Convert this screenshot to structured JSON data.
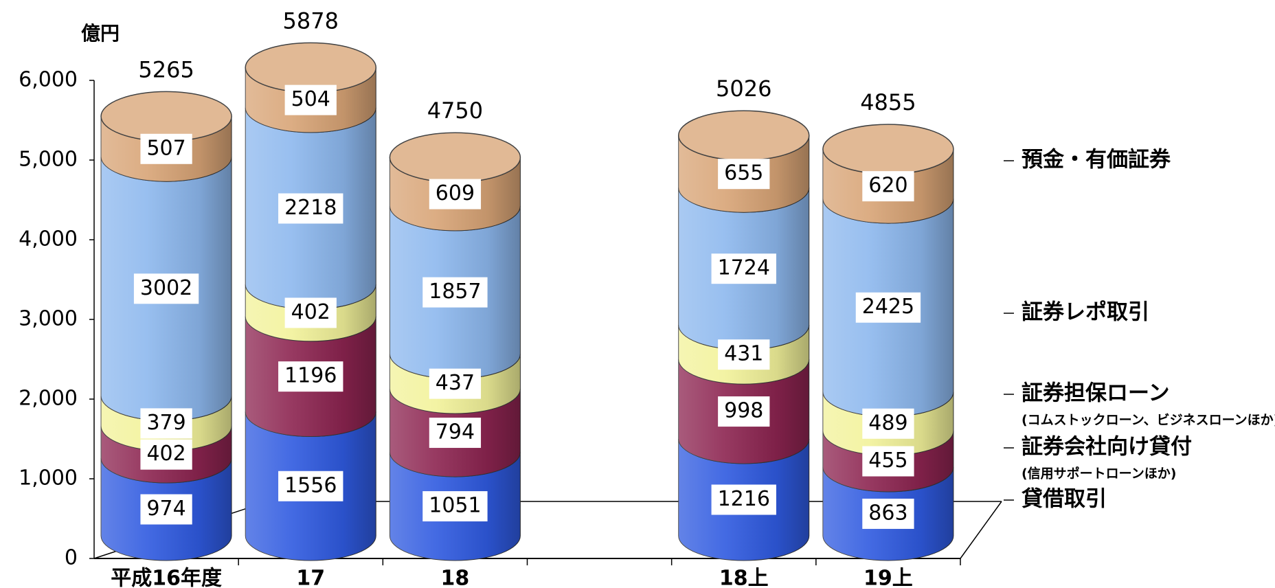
{
  "chart_data": {
    "type": "stacked-cylinder",
    "ylabel": "億円",
    "categories": [
      "平成16年度",
      "17",
      "18",
      null,
      "18上",
      "19上"
    ],
    "series": [
      {
        "name": "貸借取引",
        "color": "#2f5ae0",
        "values": [
          974,
          1556,
          1051,
          null,
          1216,
          863
        ]
      },
      {
        "name": "証券会社向け貸付",
        "note": "(信用サポートローンほか)",
        "color": "#8c2450",
        "values": [
          402,
          1196,
          794,
          null,
          998,
          455
        ]
      },
      {
        "name": "証券担保ローン",
        "note": "(コムストックローン、ビジネスローンほか)",
        "color": "#f2f29a",
        "values": [
          379,
          402,
          437,
          null,
          431,
          489
        ]
      },
      {
        "name": "証券レポ取引",
        "color": "#8db8ee",
        "values": [
          3002,
          2218,
          1857,
          null,
          1724,
          2425
        ]
      },
      {
        "name": "預金・有価証券",
        "color": "#d8a476",
        "values": [
          507,
          504,
          609,
          null,
          655,
          620
        ]
      }
    ],
    "totals": [
      5265,
      5878,
      4750,
      null,
      5026,
      4855
    ],
    "ylim": [
      0,
      6000
    ],
    "yticks": [
      0,
      {
        "value": 1000,
        "label": "1,000"
      },
      {
        "value": 2000,
        "label": "2,000"
      },
      {
        "value": 3000,
        "label": "3,000"
      },
      {
        "value": 4000,
        "label": "4,000"
      },
      {
        "value": 5000,
        "label": "5,000"
      },
      {
        "value": 6000,
        "label": "6,000"
      }
    ]
  }
}
